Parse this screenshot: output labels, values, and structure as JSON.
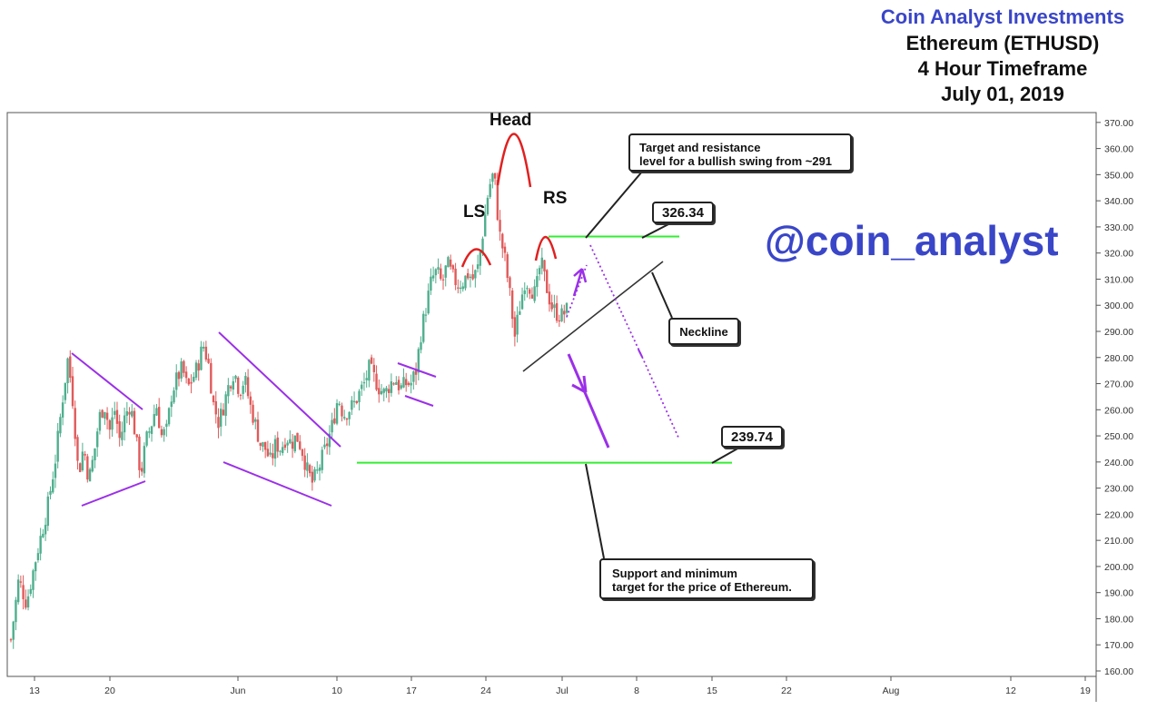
{
  "header": {
    "brand": "Coin Analyst Investments",
    "asset": "Ethereum (ETHUSD)",
    "timeframe": "4 Hour Timeframe",
    "date": "July 01, 2019"
  },
  "watermark": "@coin_analyst",
  "colors": {
    "brand": "#3a46c8",
    "bull_candle": "#4fae8e",
    "bear_candle": "#e05a5a",
    "level_line": "#33ee33",
    "pattern_line": "#9b30e8",
    "shoulder_arc": "#e02020",
    "neckline": "#333333"
  },
  "labels": {
    "head": "Head",
    "left_shoulder": "LS",
    "right_shoulder": "RS"
  },
  "callouts": {
    "target": "Target and resistance\nlevel for a bullish swing from ~291",
    "neckline": "Neckline",
    "support": "Support and minimum\ntarget for the price of Ethereum.",
    "price_high": "326.34",
    "price_low": "239.74"
  },
  "chart_data": {
    "type": "candlestick",
    "symbol": "ETHUSD",
    "timeframe": "4H",
    "y_axis": {
      "ticks": [
        "160.00",
        "170.00",
        "180.00",
        "190.00",
        "200.00",
        "210.00",
        "220.00",
        "230.00",
        "240.00",
        "250.00",
        "260.00",
        "270.00",
        "280.00",
        "290.00",
        "300.00",
        "310.00",
        "320.00",
        "330.00",
        "340.00",
        "350.00",
        "360.00",
        "370.00"
      ],
      "range": [
        156,
        373
      ]
    },
    "x_axis": {
      "ticks": [
        "13",
        "20",
        "Jun",
        "10",
        "17",
        "24",
        "Jul",
        "8",
        "15",
        "22",
        "Aug",
        "12",
        "19"
      ]
    },
    "levels": [
      {
        "name": "resistance",
        "value": 326.34
      },
      {
        "name": "support",
        "value": 239.74
      }
    ],
    "price_path": [
      [
        0,
        172
      ],
      [
        1.5,
        195
      ],
      [
        3,
        186
      ],
      [
        5,
        205
      ],
      [
        7,
        222
      ],
      [
        8.5,
        240
      ],
      [
        10,
        265
      ],
      [
        11,
        280
      ],
      [
        12,
        262
      ],
      [
        13,
        235
      ],
      [
        14,
        246
      ],
      [
        15,
        233
      ],
      [
        16,
        243
      ],
      [
        17,
        257
      ],
      [
        18,
        262
      ],
      [
        19,
        252
      ],
      [
        20,
        260
      ],
      [
        21,
        248
      ],
      [
        22,
        258
      ],
      [
        23,
        262
      ],
      [
        24,
        250
      ],
      [
        25,
        235
      ],
      [
        26,
        248
      ],
      [
        27,
        254
      ],
      [
        28,
        262
      ],
      [
        29,
        250
      ],
      [
        30,
        252
      ],
      [
        31,
        267
      ],
      [
        32,
        272
      ],
      [
        33,
        276
      ],
      [
        34,
        268
      ],
      [
        35,
        272
      ],
      [
        36,
        277
      ],
      [
        37,
        285
      ],
      [
        38,
        278
      ],
      [
        39,
        262
      ],
      [
        40,
        255
      ],
      [
        41,
        262
      ],
      [
        42,
        270
      ],
      [
        43,
        275
      ],
      [
        44,
        267
      ],
      [
        45,
        272
      ],
      [
        46,
        262
      ],
      [
        47,
        255
      ],
      [
        48,
        247
      ],
      [
        49,
        245
      ],
      [
        50,
        240
      ],
      [
        51,
        247
      ],
      [
        52,
        245
      ],
      [
        53,
        250
      ],
      [
        54,
        247
      ],
      [
        55,
        250
      ],
      [
        56,
        245
      ],
      [
        57,
        237
      ],
      [
        58,
        232
      ],
      [
        59,
        236
      ],
      [
        60,
        242
      ],
      [
        61,
        248
      ],
      [
        62,
        255
      ],
      [
        63,
        265
      ],
      [
        64,
        258
      ],
      [
        65,
        260
      ],
      [
        66,
        262
      ],
      [
        67,
        266
      ],
      [
        68,
        270
      ],
      [
        69,
        276
      ],
      [
        70,
        272
      ],
      [
        71,
        268
      ],
      [
        72,
        266
      ],
      [
        73,
        270
      ],
      [
        74,
        272
      ],
      [
        75,
        268
      ],
      [
        76,
        270
      ],
      [
        77,
        270
      ],
      [
        78,
        275
      ],
      [
        79,
        290
      ],
      [
        80,
        300
      ],
      [
        81,
        310
      ],
      [
        82,
        313
      ],
      [
        83,
        308
      ],
      [
        84,
        316
      ],
      [
        85,
        311
      ],
      [
        86,
        308
      ],
      [
        87,
        309
      ],
      [
        88,
        312
      ],
      [
        89,
        310
      ],
      [
        90,
        315
      ],
      [
        91,
        330
      ],
      [
        92,
        345
      ],
      [
        93,
        351
      ],
      [
        94,
        328
      ],
      [
        95,
        319
      ],
      [
        96,
        305
      ],
      [
        97,
        288
      ],
      [
        98,
        300
      ],
      [
        99,
        310
      ],
      [
        100,
        307
      ],
      [
        101,
        304
      ],
      [
        102,
        317
      ],
      [
        103,
        308
      ],
      [
        104,
        300
      ],
      [
        105,
        297
      ],
      [
        106,
        296
      ],
      [
        107,
        298
      ]
    ],
    "price_path_x_unit": "4-hour bar index"
  }
}
